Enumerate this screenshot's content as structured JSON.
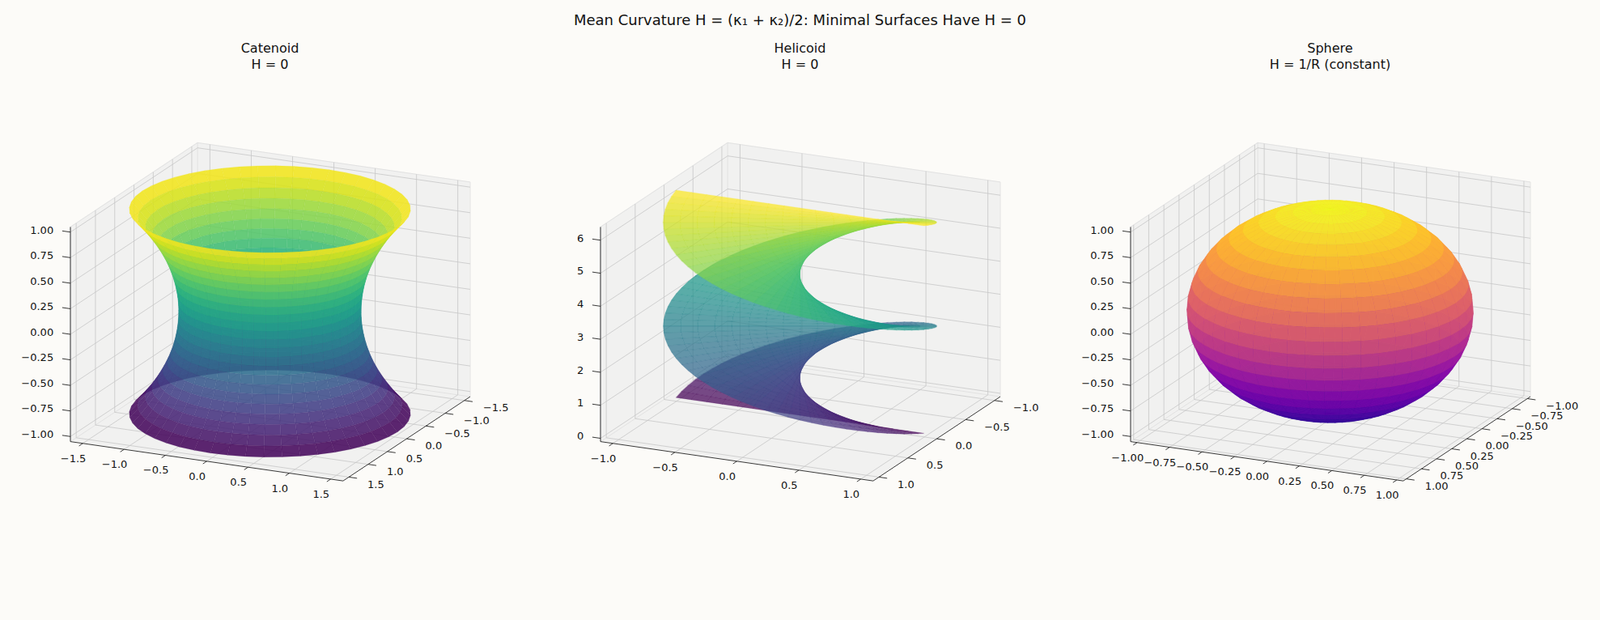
{
  "title": "Mean Curvature H = (κ₁ + κ₂)/2: Minimal Surfaces Have H = 0",
  "chart_data": [
    {
      "type": "surface",
      "title": "Catenoid",
      "subtitle": "H = 0",
      "surface": "catenoid",
      "params": {
        "c": 1,
        "v": [
          -1,
          1
        ]
      },
      "color": "viridis",
      "grid": true,
      "xlim": [
        -1.65,
        1.65
      ],
      "ylim": [
        -1.65,
        1.65
      ],
      "zlim": [
        -1.05,
        1.05
      ],
      "xticks": [
        {
          "value": -1.5,
          "label": "−1.5"
        },
        {
          "value": -1,
          "label": "−1.0"
        },
        {
          "value": -0.5,
          "label": "−0.5"
        },
        {
          "value": 0,
          "label": "0.0"
        },
        {
          "value": 0.5,
          "label": "0.5"
        },
        {
          "value": 1,
          "label": "1.0"
        },
        {
          "value": 1.5,
          "label": "1.5"
        }
      ],
      "yticks": [
        {
          "value": -1.5,
          "label": "−1.5"
        },
        {
          "value": -1,
          "label": "−1.0"
        },
        {
          "value": -0.5,
          "label": "−0.5"
        },
        {
          "value": 0,
          "label": "0.0"
        },
        {
          "value": 0.5,
          "label": "0.5"
        },
        {
          "value": 1,
          "label": "1.0"
        },
        {
          "value": 1.5,
          "label": "1.5"
        }
      ],
      "zticks": [
        {
          "value": -1,
          "label": "−1.00"
        },
        {
          "value": -0.75,
          "label": "−0.75"
        },
        {
          "value": -0.5,
          "label": "−0.50"
        },
        {
          "value": -0.25,
          "label": "−0.25"
        },
        {
          "value": 0,
          "label": "0.00"
        },
        {
          "value": 0.25,
          "label": "0.25"
        },
        {
          "value": 0.5,
          "label": "0.50"
        },
        {
          "value": 0.75,
          "label": "0.75"
        },
        {
          "value": 1,
          "label": "1.00"
        }
      ]
    },
    {
      "type": "surface",
      "title": "Helicoid",
      "subtitle": "H = 0",
      "surface": "helicoid",
      "params": {
        "u": [
          -1,
          1
        ],
        "v": [
          0,
          6.283
        ]
      },
      "color": "viridis",
      "grid": true,
      "xlim": [
        -1.1,
        1.1
      ],
      "ylim": [
        -1.1,
        1.1
      ],
      "zlim": [
        -0.1,
        6.4
      ],
      "xticks": [
        {
          "value": -1,
          "label": "−1.0"
        },
        {
          "value": -0.5,
          "label": "−0.5"
        },
        {
          "value": 0,
          "label": "0.0"
        },
        {
          "value": 0.5,
          "label": "0.5"
        },
        {
          "value": 1,
          "label": "1.0"
        }
      ],
      "yticks": [
        {
          "value": -1,
          "label": "−1.0"
        },
        {
          "value": -0.5,
          "label": "−0.5"
        },
        {
          "value": 0,
          "label": "0.0"
        },
        {
          "value": 0.5,
          "label": "0.5"
        },
        {
          "value": 1,
          "label": "1.0"
        }
      ],
      "zticks": [
        0,
        1,
        2,
        3,
        4,
        5,
        6
      ]
    },
    {
      "type": "surface",
      "title": "Sphere",
      "subtitle": "H = 1/R (constant)",
      "surface": "sphere",
      "params": {
        "R": 1
      },
      "color": "plasma",
      "grid": true,
      "xlim": [
        -1.05,
        1.05
      ],
      "ylim": [
        -1.05,
        1.05
      ],
      "zlim": [
        -1.05,
        1.05
      ],
      "xticks": [
        {
          "value": -1,
          "label": "−1.00"
        },
        {
          "value": -0.75,
          "label": "−0.75"
        },
        {
          "value": -0.5,
          "label": "−0.50"
        },
        {
          "value": -0.25,
          "label": "−0.25"
        },
        {
          "value": 0,
          "label": "0.00"
        },
        {
          "value": 0.25,
          "label": "0.25"
        },
        {
          "value": 0.5,
          "label": "0.50"
        },
        {
          "value": 0.75,
          "label": "0.75"
        },
        {
          "value": 1,
          "label": "1.00"
        }
      ],
      "yticks": [
        {
          "value": -1,
          "label": "−1.00"
        },
        {
          "value": -0.75,
          "label": "−0.75"
        },
        {
          "value": -0.5,
          "label": "−0.50"
        },
        {
          "value": -0.25,
          "label": "−0.25"
        },
        {
          "value": 0,
          "label": "0.00"
        },
        {
          "value": 0.25,
          "label": "0.25"
        },
        {
          "value": 0.5,
          "label": "0.50"
        },
        {
          "value": 0.75,
          "label": "0.75"
        },
        {
          "value": 1,
          "label": "1.00"
        }
      ],
      "zticks": [
        {
          "value": -1,
          "label": "−1.00"
        },
        {
          "value": -0.75,
          "label": "−0.75"
        },
        {
          "value": -0.5,
          "label": "−0.50"
        },
        {
          "value": -0.25,
          "label": "−0.25"
        },
        {
          "value": 0,
          "label": "0.00"
        },
        {
          "value": 0.25,
          "label": "0.25"
        },
        {
          "value": 0.5,
          "label": "0.50"
        },
        {
          "value": 0.75,
          "label": "0.75"
        },
        {
          "value": 1,
          "label": "1.00"
        }
      ]
    }
  ]
}
